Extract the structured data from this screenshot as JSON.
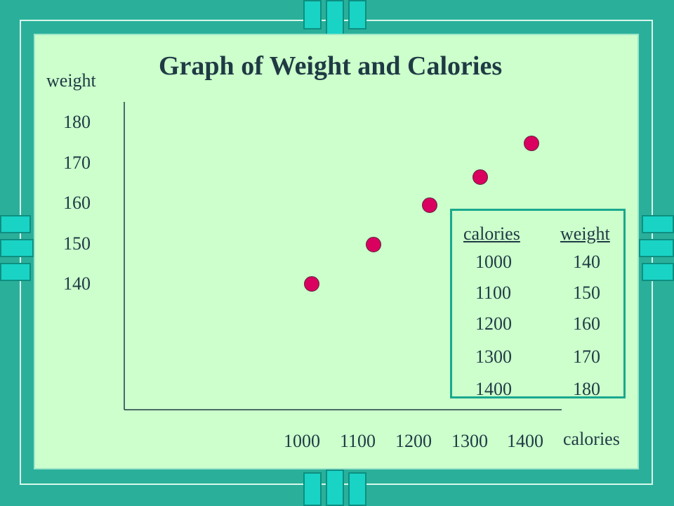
{
  "chart_data": {
    "type": "scatter",
    "title": "Graph of Weight and Calories",
    "xlabel": "calories",
    "ylabel": "weight",
    "x_ticks": [
      "1000",
      "1100",
      "1200",
      "1300",
      "1400"
    ],
    "y_ticks": [
      "180",
      "170",
      "160",
      "150",
      "140"
    ],
    "points": [
      {
        "x": 1000,
        "y": 140
      },
      {
        "x": 1100,
        "y": 150
      },
      {
        "x": 1200,
        "y": 160
      },
      {
        "x": 1300,
        "y": 170
      },
      {
        "x": 1400,
        "y": 180
      }
    ],
    "point_color": "#d9005f",
    "grid": false
  },
  "table": {
    "headers": [
      "calories",
      "weight"
    ],
    "rows": [
      [
        "1000",
        "140"
      ],
      [
        "1100",
        "150"
      ],
      [
        "1200",
        "160"
      ],
      [
        "1300",
        "170"
      ],
      [
        "1400",
        "180"
      ]
    ]
  },
  "colors": {
    "background": "#2ab09a",
    "panel": "#ccffcc",
    "accent": "#19d3c5"
  }
}
